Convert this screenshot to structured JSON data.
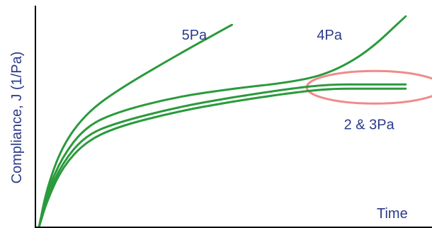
{
  "chart_data": {
    "type": "line",
    "xlabel": "Time",
    "ylabel": "Compliance, J (1/Pa)",
    "xlim": [
      0,
      100
    ],
    "ylim": [
      0,
      100
    ],
    "grid": false,
    "series": [
      {
        "name": "5Pa",
        "x": [
          0,
          2,
          6,
          12,
          20,
          35,
          50
        ],
        "y": [
          0,
          18,
          38,
          53,
          64,
          80,
          95
        ]
      },
      {
        "name": "4Pa",
        "x": [
          0,
          2,
          6,
          12,
          20,
          35,
          50,
          65,
          75,
          85,
          95
        ],
        "y": [
          0,
          16,
          33,
          47,
          54,
          61,
          65,
          68,
          72,
          82,
          99
        ]
      },
      {
        "name": "2 & 3Pa",
        "x": [
          0,
          2,
          6,
          12,
          20,
          35,
          50,
          65,
          75,
          85,
          95
        ],
        "y": [
          0,
          14,
          30,
          43,
          49,
          56,
          61,
          65,
          67,
          67,
          67
        ]
      },
      {
        "name": "2 & 3Pa",
        "x": [
          0,
          2,
          6,
          12,
          20,
          35,
          50,
          65,
          75,
          85,
          95
        ],
        "y": [
          0,
          12,
          28,
          40,
          47,
          54,
          59,
          63,
          65,
          65,
          65
        ]
      }
    ],
    "annotations": [
      {
        "text": "5Pa",
        "x": 37,
        "y": 88
      },
      {
        "text": "4Pa",
        "x": 72,
        "y": 88
      },
      {
        "text": "2 & 3Pa",
        "x": 79,
        "y": 46
      }
    ],
    "highlight_color": "#f08a8a",
    "line_color": "#2a9a3c",
    "text_color": "#2b3a8c"
  }
}
